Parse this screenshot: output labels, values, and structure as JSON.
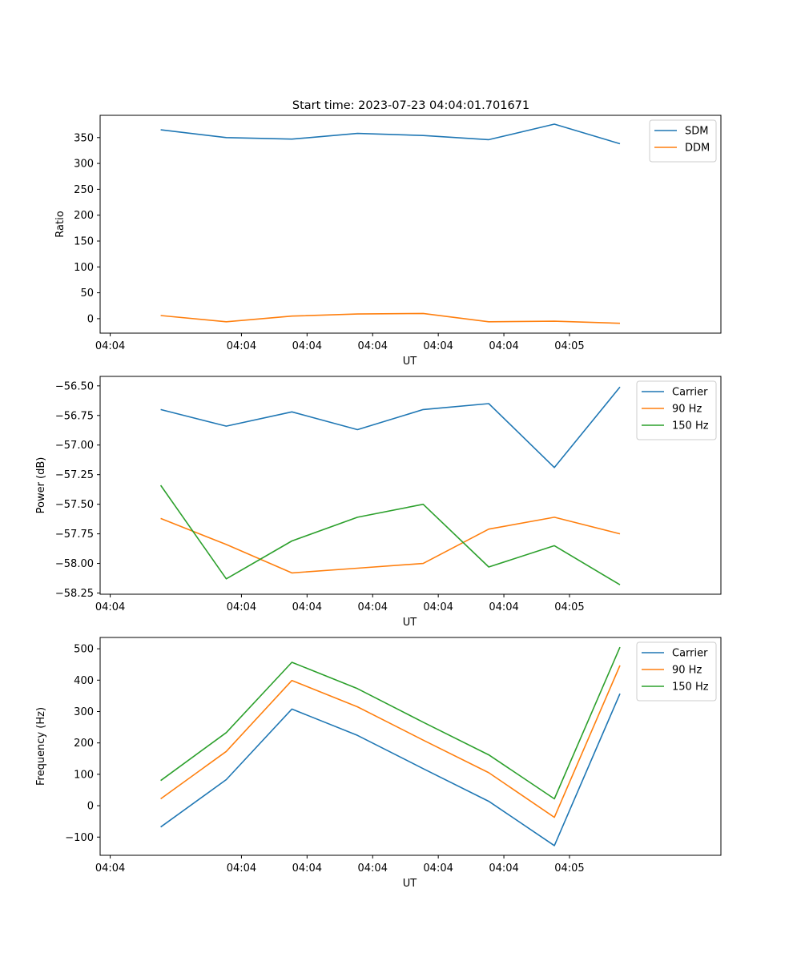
{
  "title": "Start time: 2023-07-23 04:04:01.701671",
  "colors": {
    "blue": "#1f77b4",
    "orange": "#ff7f0e",
    "green": "#2ca02c"
  },
  "chart_data": [
    {
      "type": "line",
      "title": "Start time: 2023-07-23 04:04:01.701671",
      "xlabel": "UT",
      "ylabel": "Ratio",
      "x_tick_labels": [
        "04:04",
        "04:04",
        "04:04",
        "04:04",
        "04:04",
        "04:04",
        "04:05"
      ],
      "x": [
        0.5,
        1.15,
        1.8,
        2.45,
        3.1,
        3.75,
        4.4,
        5.05
      ],
      "xlim": [
        -0.1,
        6.05
      ],
      "ylim": [
        -28,
        393
      ],
      "yticks": [
        0,
        50,
        100,
        150,
        200,
        250,
        300,
        350
      ],
      "ytick_labels": [
        "0",
        "50",
        "100",
        "150",
        "200",
        "250",
        "300",
        "350"
      ],
      "legend": "top-right",
      "series": [
        {
          "name": "SDM",
          "color": "#1f77b4",
          "values": [
            365,
            350,
            347,
            358,
            354,
            346,
            376,
            338
          ]
        },
        {
          "name": "DDM",
          "color": "#ff7f0e",
          "values": [
            6,
            -6,
            5,
            9,
            10,
            -6,
            -5,
            -9
          ]
        }
      ]
    },
    {
      "type": "line",
      "xlabel": "UT",
      "ylabel": "Power (dB)",
      "x_tick_labels": [
        "04:04",
        "04:04",
        "04:04",
        "04:04",
        "04:04",
        "04:04",
        "04:05"
      ],
      "x": [
        0.5,
        1.15,
        1.8,
        2.45,
        3.1,
        3.75,
        4.4,
        5.05
      ],
      "xlim": [
        -0.1,
        6.05
      ],
      "ylim": [
        -58.26,
        -56.42
      ],
      "yticks": [
        -58.25,
        -58.0,
        -57.75,
        -57.5,
        -57.25,
        -57.0,
        -56.75,
        -56.5
      ],
      "ytick_labels": [
        "−58.25",
        "−58.00",
        "−57.75",
        "−57.50",
        "−57.25",
        "−57.00",
        "−56.75",
        "−56.50"
      ],
      "legend": "top-right",
      "series": [
        {
          "name": "Carrier",
          "color": "#1f77b4",
          "values": [
            -56.7,
            -56.84,
            -56.72,
            -56.87,
            -56.7,
            -56.65,
            -57.19,
            -56.51
          ]
        },
        {
          "name": "90 Hz",
          "color": "#ff7f0e",
          "values": [
            -57.62,
            -57.84,
            -58.08,
            -58.04,
            -58.0,
            -57.71,
            -57.61,
            -57.75
          ]
        },
        {
          "name": "150 Hz",
          "color": "#2ca02c",
          "values": [
            -57.34,
            -58.13,
            -57.81,
            -57.61,
            -57.5,
            -58.03,
            -57.85,
            -58.18
          ]
        }
      ]
    },
    {
      "type": "line",
      "xlabel": "UT",
      "ylabel": "Frequency (Hz)",
      "x_tick_labels": [
        "04:04",
        "04:04",
        "04:04",
        "04:04",
        "04:04",
        "04:04",
        "04:05"
      ],
      "x": [
        0.5,
        1.15,
        1.8,
        2.45,
        3.1,
        3.75,
        4.4,
        5.05
      ],
      "xlim": [
        -0.1,
        6.05
      ],
      "ylim": [
        -158,
        536
      ],
      "yticks": [
        -100,
        0,
        100,
        200,
        300,
        400,
        500
      ],
      "ytick_labels": [
        "−100",
        "0",
        "100",
        "200",
        "300",
        "400",
        "500"
      ],
      "legend": "top-right",
      "series": [
        {
          "name": "Carrier",
          "color": "#1f77b4",
          "values": [
            -68,
            83,
            308,
            224,
            118,
            14,
            -127,
            357
          ]
        },
        {
          "name": "90 Hz",
          "color": "#ff7f0e",
          "values": [
            22,
            173,
            399,
            315,
            209,
            105,
            -37,
            447
          ]
        },
        {
          "name": "150 Hz",
          "color": "#2ca02c",
          "values": [
            80,
            233,
            457,
            373,
            266,
            162,
            22,
            505
          ]
        }
      ]
    }
  ]
}
